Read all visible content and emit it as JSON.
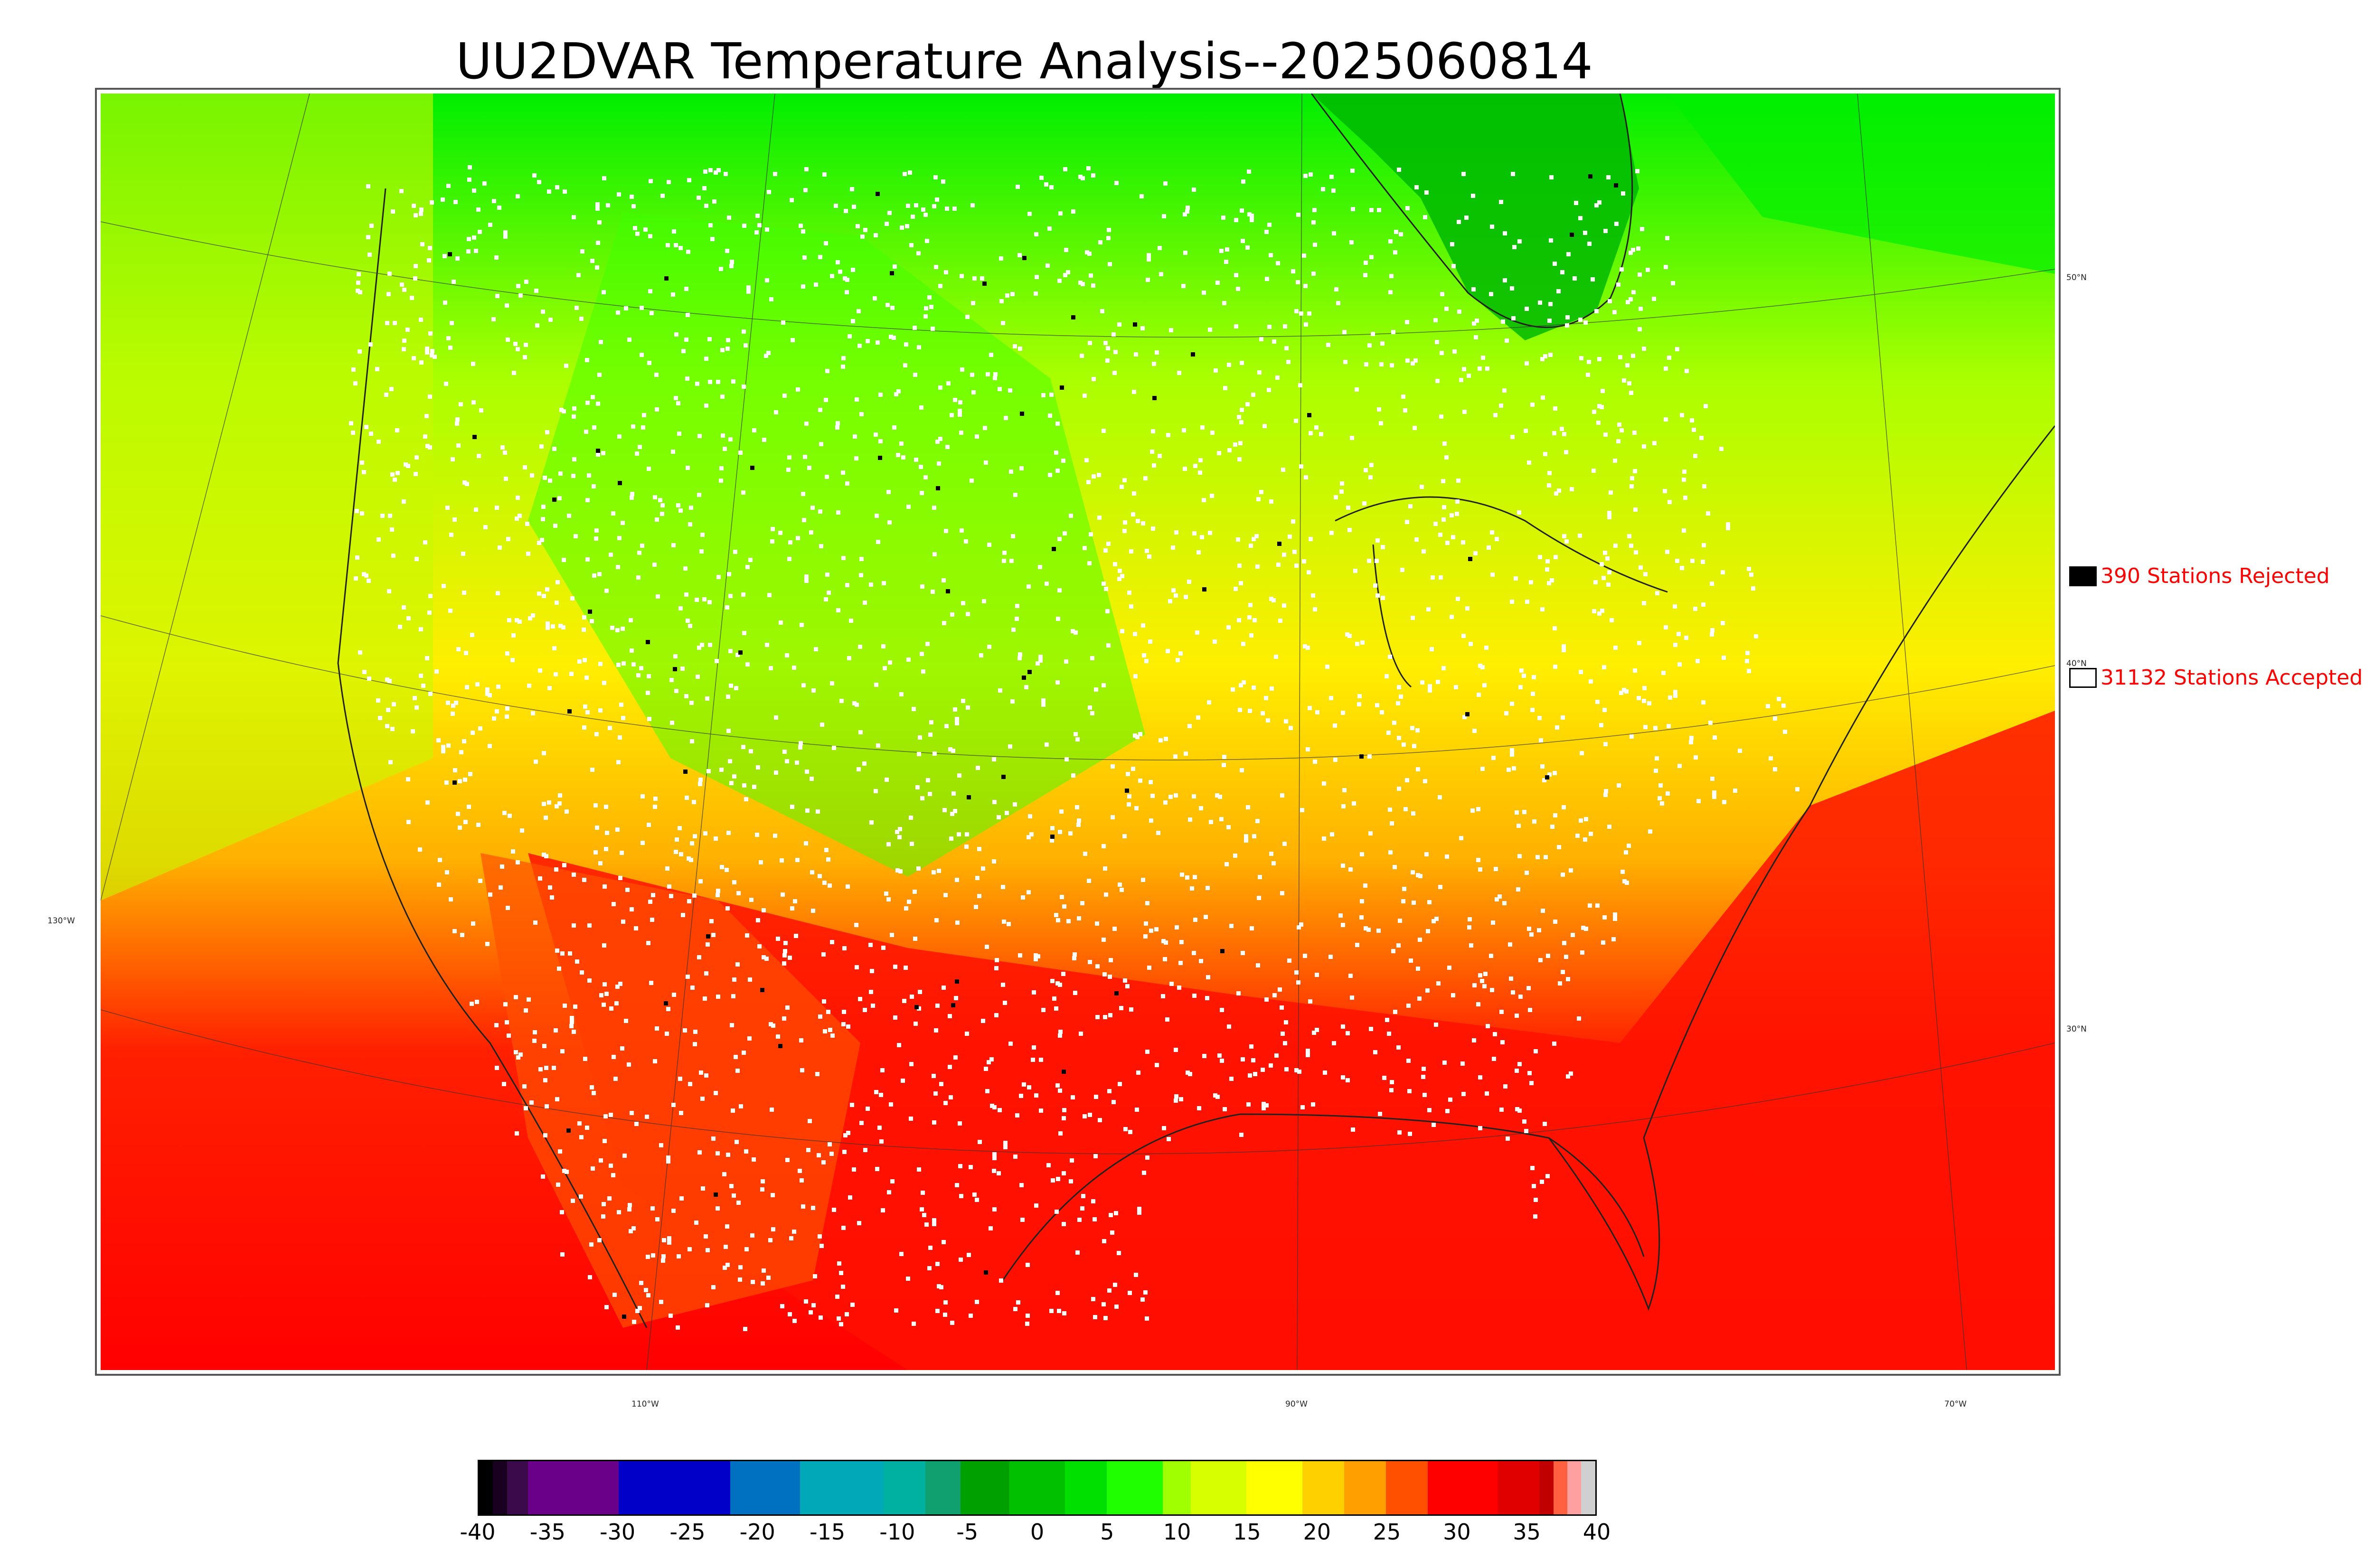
{
  "title": "UU2DVAR Temperature Analysis--2025060814",
  "legend": {
    "rejected": {
      "label": "390 Stations Rejected",
      "swatch_color": "#000000",
      "text_color": "#ff0000"
    },
    "accepted": {
      "label": "31132 Stations Accepted",
      "swatch_color": "#ffffff",
      "text_color": "#ff0000"
    }
  },
  "map_labels": {
    "lat": [
      "50°N",
      "40°N",
      "30°N"
    ],
    "lon": [
      "130°W",
      "110°W",
      "90°W",
      "70°W"
    ]
  },
  "colorbar": {
    "ticks": [
      "-40",
      "-35",
      "-30",
      "-25",
      "-20",
      "-15",
      "-10",
      "-5",
      "0",
      "5",
      "10",
      "15",
      "20",
      "25",
      "30",
      "35",
      "40"
    ],
    "range": [
      -40,
      40
    ],
    "segments": [
      {
        "from": -40,
        "to": -39,
        "color": "#000000"
      },
      {
        "from": -39,
        "to": -38,
        "color": "#1a0020"
      },
      {
        "from": -38,
        "to": -36.5,
        "color": "#3a0a4a"
      },
      {
        "from": -36.5,
        "to": -30,
        "color": "#6a008a"
      },
      {
        "from": -30,
        "to": -22,
        "color": "#0000c8"
      },
      {
        "from": -22,
        "to": -17,
        "color": "#0070c0"
      },
      {
        "from": -17,
        "to": -11,
        "color": "#00a8b8"
      },
      {
        "from": -11,
        "to": -8,
        "color": "#00b0a0"
      },
      {
        "from": -8,
        "to": -5.5,
        "color": "#10a070"
      },
      {
        "from": -5.5,
        "to": -2,
        "color": "#00a000"
      },
      {
        "from": -2,
        "to": 2,
        "color": "#00c000"
      },
      {
        "from": 2,
        "to": 5,
        "color": "#00e000"
      },
      {
        "from": 5,
        "to": 9,
        "color": "#20ff00"
      },
      {
        "from": 9,
        "to": 11,
        "color": "#a0ff00"
      },
      {
        "from": 11,
        "to": 15,
        "color": "#d8ff00"
      },
      {
        "from": 15,
        "to": 19,
        "color": "#ffff00"
      },
      {
        "from": 19,
        "to": 22,
        "color": "#ffd000"
      },
      {
        "from": 22,
        "to": 25,
        "color": "#ffa000"
      },
      {
        "from": 25,
        "to": 28,
        "color": "#ff5000"
      },
      {
        "from": 28,
        "to": 33,
        "color": "#ff0000"
      },
      {
        "from": 33,
        "to": 36,
        "color": "#e00000"
      },
      {
        "from": 36,
        "to": 37,
        "color": "#c00000"
      },
      {
        "from": 37,
        "to": 38,
        "color": "#ff6040"
      },
      {
        "from": 38,
        "to": 39,
        "color": "#ffa0a0"
      },
      {
        "from": 39,
        "to": 40,
        "color": "#d0d0d0"
      }
    ]
  },
  "colors": {
    "cold_band": "#00e000",
    "cool_band": "#a8ff00",
    "mild_band": "#ffee00",
    "warm_band": "#ffa500",
    "hot_band": "#ff1500",
    "station_accepted": "#ffffff",
    "station_rejected": "#000000"
  }
}
